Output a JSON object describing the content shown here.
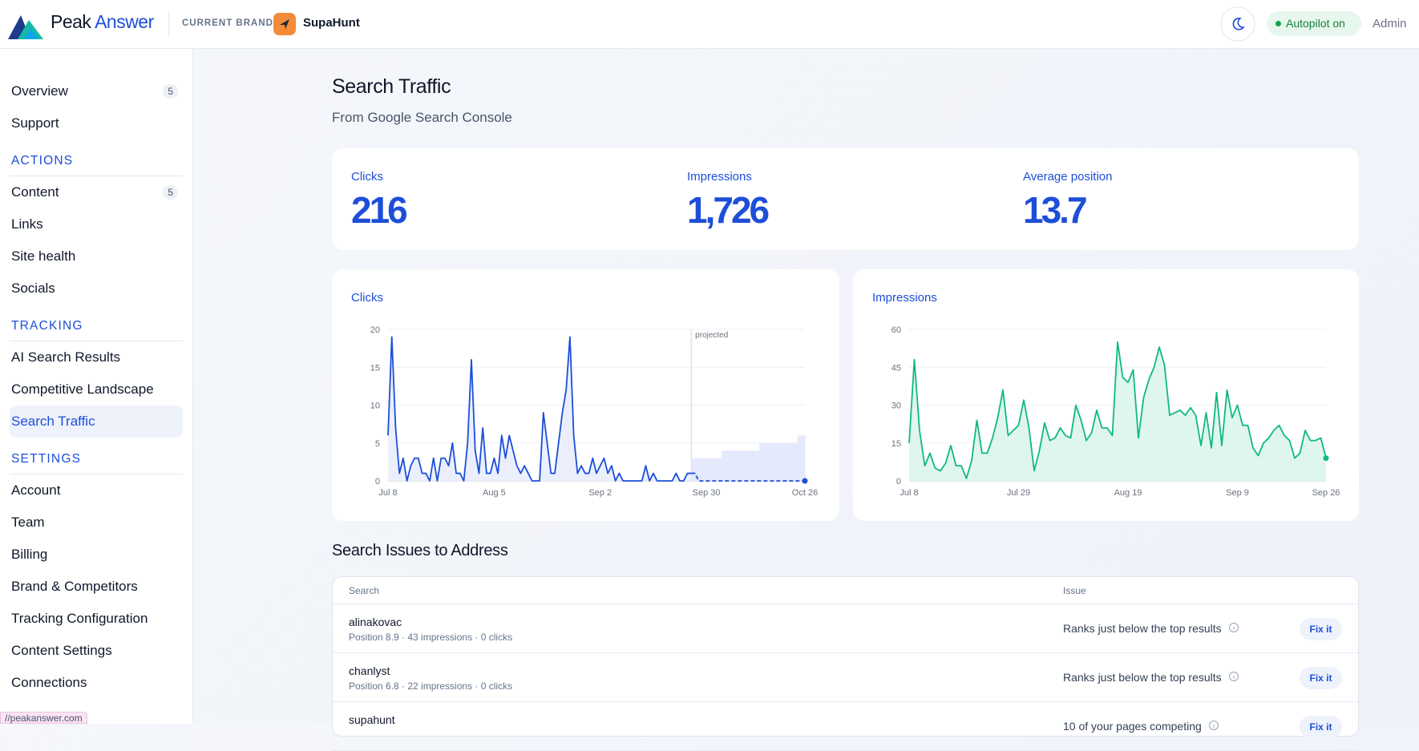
{
  "header": {
    "logo": [
      "Peak",
      "Answer"
    ],
    "brand_label": "CURRENT BRAND",
    "brand": "SupaHunt",
    "autopilot": "Autopilot on",
    "user": "Admin"
  },
  "sidebar": {
    "items": [
      {
        "label": "Overview",
        "badge": "5"
      },
      {
        "label": "Support"
      }
    ],
    "sections": [
      {
        "title": "ACTIONS",
        "items": [
          {
            "label": "Content",
            "badge": "5"
          },
          {
            "label": "Links"
          },
          {
            "label": "Site health"
          },
          {
            "label": "Socials"
          }
        ]
      },
      {
        "title": "TRACKING",
        "items": [
          {
            "label": "AI Search Results"
          },
          {
            "label": "Competitive Landscape"
          },
          {
            "label": "Search Traffic",
            "active": true
          }
        ]
      },
      {
        "title": "SETTINGS",
        "items": [
          {
            "label": "Account"
          },
          {
            "label": "Team"
          },
          {
            "label": "Billing"
          },
          {
            "label": "Brand & Competitors"
          },
          {
            "label": "Tracking Configuration"
          },
          {
            "label": "Content Settings"
          },
          {
            "label": "Connections"
          }
        ]
      }
    ]
  },
  "status_url": "//peakanswer.com",
  "page": {
    "title": "Search Traffic",
    "subtitle": "From Google Search Console"
  },
  "stats": [
    {
      "label": "Clicks",
      "value": "216"
    },
    {
      "label": "Impressions",
      "value": "1,726"
    },
    {
      "label": "Average position",
      "value": "13.7"
    }
  ],
  "chart_data": [
    {
      "type": "line",
      "title": "Clicks",
      "annotation": "projected",
      "grid": true,
      "xlim": [
        0,
        110
      ],
      "xticks": [
        {
          "value": 0,
          "label": "Jul 8"
        },
        {
          "value": 28,
          "label": "Aug 5"
        },
        {
          "value": 56,
          "label": "Sep 2"
        },
        {
          "value": 84,
          "label": "Sep 30"
        },
        {
          "value": 110,
          "label": "Oct 26"
        }
      ],
      "ylim": [
        0,
        20
      ],
      "yticks": [
        0,
        5,
        10,
        15,
        20
      ],
      "series": [
        {
          "style": "band",
          "color": "#e4eafb",
          "values": [
            null,
            null,
            null,
            null,
            null,
            null,
            null,
            null,
            null,
            null,
            null,
            null,
            null,
            null,
            null,
            null,
            null,
            null,
            null,
            null,
            null,
            null,
            null,
            null,
            null,
            null,
            null,
            null,
            null,
            null,
            null,
            null,
            null,
            null,
            null,
            null,
            null,
            null,
            null,
            null,
            null,
            null,
            null,
            null,
            null,
            null,
            null,
            null,
            null,
            null,
            null,
            null,
            null,
            null,
            null,
            null,
            null,
            null,
            null,
            null,
            null,
            null,
            null,
            null,
            null,
            null,
            null,
            null,
            null,
            null,
            null,
            null,
            null,
            null,
            null,
            null,
            null,
            null,
            null,
            null,
            3,
            3,
            3,
            3,
            3,
            3,
            3,
            3,
            4,
            4,
            4,
            4,
            4,
            4,
            4,
            4,
            4,
            4,
            5,
            5,
            5,
            5,
            5,
            5,
            5,
            5,
            5,
            5,
            6,
            6,
            6
          ]
        },
        {
          "color": "#1d4ed8",
          "fill": "#e8edfb",
          "values": [
            6,
            19,
            7,
            1,
            3,
            0,
            2,
            3,
            3,
            1,
            1,
            0,
            3,
            0,
            3,
            3,
            2,
            5,
            1,
            1,
            0,
            5,
            16,
            4,
            1,
            7,
            1,
            1,
            3,
            1,
            6,
            3,
            6,
            4,
            2,
            1,
            2,
            1,
            0,
            0,
            0,
            9,
            5,
            1,
            1,
            5,
            9,
            12,
            19,
            6,
            1,
            2,
            1,
            1,
            3,
            1,
            2,
            3,
            1,
            2,
            0,
            1,
            0,
            0,
            0,
            0,
            0,
            0,
            2,
            0,
            1,
            0,
            0,
            0,
            0,
            0,
            1,
            0,
            0,
            1,
            1,
            null,
            null,
            null,
            null,
            null,
            null,
            null,
            null,
            null,
            null,
            null,
            null,
            null,
            null,
            null,
            null,
            null,
            null,
            null,
            null,
            null,
            null,
            null,
            null,
            null,
            null,
            null,
            null,
            null,
            null
          ]
        },
        {
          "color": "#1d4ed8",
          "dashed": true,
          "end_marker": true,
          "values": [
            null,
            null,
            null,
            null,
            null,
            null,
            null,
            null,
            null,
            null,
            null,
            null,
            null,
            null,
            null,
            null,
            null,
            null,
            null,
            null,
            null,
            null,
            null,
            null,
            null,
            null,
            null,
            null,
            null,
            null,
            null,
            null,
            null,
            null,
            null,
            null,
            null,
            null,
            null,
            null,
            null,
            null,
            null,
            null,
            null,
            null,
            null,
            null,
            null,
            null,
            null,
            null,
            null,
            null,
            null,
            null,
            null,
            null,
            null,
            null,
            null,
            null,
            null,
            null,
            null,
            null,
            null,
            null,
            null,
            null,
            null,
            null,
            null,
            null,
            null,
            null,
            null,
            null,
            null,
            null,
            1,
            1,
            0,
            0,
            0,
            0,
            0,
            0,
            0,
            0,
            0,
            0,
            0,
            0,
            0,
            0,
            0,
            0,
            0,
            0,
            0,
            0,
            0,
            0,
            0,
            0,
            0,
            0,
            0,
            0,
            0
          ]
        }
      ]
    },
    {
      "type": "line",
      "title": "Impressions",
      "grid": true,
      "xlim": [
        0,
        80
      ],
      "xticks": [
        {
          "value": 0,
          "label": "Jul 8"
        },
        {
          "value": 21,
          "label": "Jul 29"
        },
        {
          "value": 42,
          "label": "Aug 19"
        },
        {
          "value": 63,
          "label": "Sep 9"
        },
        {
          "value": 80,
          "label": "Sep 26"
        }
      ],
      "ylim": [
        0,
        60
      ],
      "yticks": [
        0,
        15,
        30,
        45,
        60
      ],
      "series": [
        {
          "color": "#10b981",
          "fill": "#dcf5ea",
          "end_marker": true,
          "values": [
            15,
            48,
            20,
            6,
            11,
            5,
            4,
            7,
            14,
            6,
            6,
            1,
            8,
            24,
            11,
            11,
            17,
            25,
            36,
            18,
            20,
            22,
            32,
            21,
            4,
            12,
            23,
            16,
            17,
            21,
            18,
            17,
            30,
            24,
            16,
            19,
            28,
            21,
            21,
            18,
            55,
            41,
            39,
            44,
            17,
            33,
            40,
            45,
            53,
            46,
            26,
            27,
            28,
            26,
            29,
            26,
            14,
            27,
            13,
            35,
            14,
            36,
            25,
            30,
            22,
            22,
            13,
            10,
            15,
            17,
            20,
            22,
            18,
            16,
            9,
            11,
            20,
            16,
            16,
            17,
            9
          ]
        }
      ]
    }
  ],
  "issues": {
    "title": "Search Issues to Address",
    "columns": [
      "Search",
      "Issue"
    ],
    "rows": [
      {
        "search": "alinakovac",
        "detail": "Position 8.9 · 43 impressions · 0 clicks",
        "issue": "Ranks just below the top results",
        "action": "Fix it"
      },
      {
        "search": "chanlyst",
        "detail": "Position 6.8 · 22 impressions · 0 clicks",
        "issue": "Ranks just below the top results",
        "action": "Fix it"
      },
      {
        "search": "supahunt",
        "issue": "10 of your pages competing",
        "action": "Fix it"
      }
    ]
  }
}
